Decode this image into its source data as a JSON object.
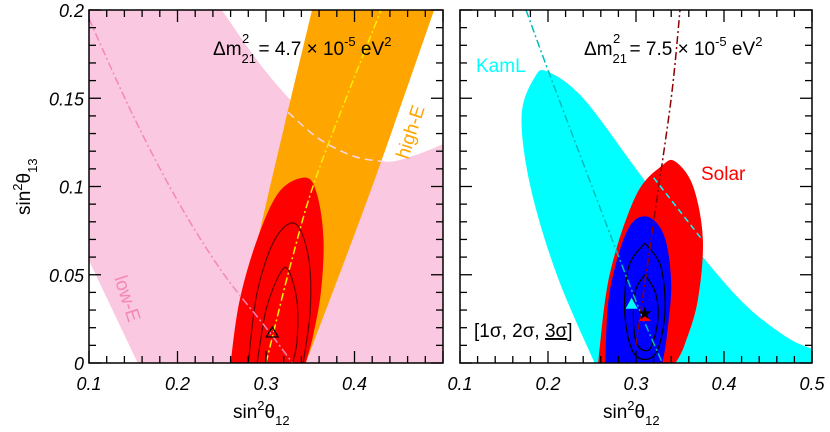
{
  "chart_data": [
    {
      "type": "area",
      "title": "",
      "annotation": {
        "main": "Δm",
        "sup": "2",
        "sub": "21",
        "rest": " = 4.7 × 10",
        "exp": "-5",
        "unit": " eV",
        "unitexp": "2"
      },
      "xlabel": {
        "main": "sin",
        "sup": "2",
        "theta": "θ",
        "sub": "12"
      },
      "ylabel": {
        "main": "sin",
        "sup": "2",
        "theta": "θ",
        "sub": "13"
      },
      "xlim": [
        0.1,
        0.5
      ],
      "ylim": [
        0,
        0.2
      ],
      "xticks": [
        "0.1",
        "0.2",
        "0.3",
        "0.4"
      ],
      "yticks": [
        "0",
        "0.05",
        "0.1",
        "0.15",
        "0.2"
      ],
      "regions": [
        {
          "name": "low-E",
          "color": "#fbc8e2"
        },
        {
          "name": "high-E",
          "color": "#ffa500"
        },
        {
          "name": "",
          "color": "#ff0000"
        }
      ],
      "best_fit": {
        "marker": "open-triangle",
        "x": 0.307,
        "y": 0.017
      }
    },
    {
      "type": "area",
      "title": "",
      "annotation": {
        "main": "Δm",
        "sup": "2",
        "sub": "21",
        "rest": " = 7.5 × 10",
        "exp": "-5",
        "unit": " eV",
        "unitexp": "2"
      },
      "xlabel": {
        "main": "sin",
        "sup": "2",
        "theta": "θ",
        "sub": "12"
      },
      "xlim": [
        0.1,
        0.5
      ],
      "ylim": [
        0,
        0.2
      ],
      "xticks": [
        "0.1",
        "0.2",
        "0.3",
        "0.4",
        "0.5"
      ],
      "regions": [
        {
          "name": "KamL",
          "color": "#00ffff"
        },
        {
          "name": "Solar",
          "color": "#ff0000"
        },
        {
          "name": "",
          "color": "#0000ff"
        }
      ],
      "legend_note": {
        "open": "[1σ, 2σ, ",
        "underlined": "3σ",
        "close": "]"
      },
      "best_fit": [
        {
          "marker": "star",
          "x": 0.31,
          "y": 0.028
        },
        {
          "marker": "cyan-triangle",
          "x": 0.295,
          "y": 0.033
        },
        {
          "marker": "red-triangle",
          "x": 0.31,
          "y": 0.026
        }
      ]
    }
  ]
}
